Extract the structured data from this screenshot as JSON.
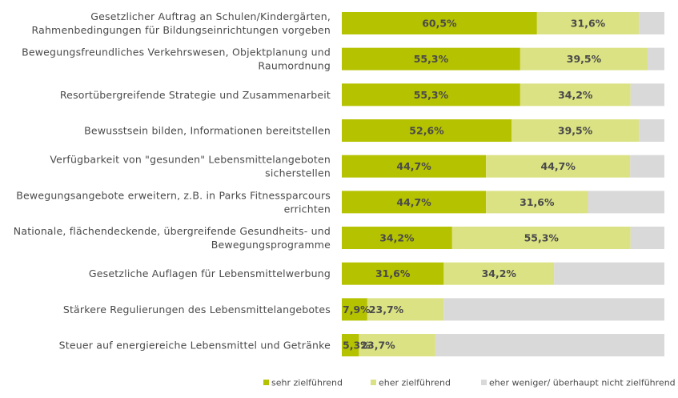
{
  "chart_data": {
    "type": "bar",
    "orientation": "horizontal",
    "stacked": true,
    "xlim": [
      0,
      100
    ],
    "categories": [
      [
        "Gesetzlicher Auftrag an Schulen/Kindergärten,",
        "Rahmenbedingungen für Bildungseinrichtungen vorgeben"
      ],
      [
        "Bewegungsfreundliches Verkehrswesen, Objektplanung und",
        "Raumordnung"
      ],
      [
        "Resortübergreifende Strategie und Zusammenarbeit"
      ],
      [
        "Bewusstsein bilden, Informationen bereitstellen"
      ],
      [
        "Verfügbarkeit von \"gesunden\" Lebensmittelangeboten",
        "sicherstellen"
      ],
      [
        "Bewegungsangebote erweitern, z.B. in Parks Fitnessparcours",
        "errichten"
      ],
      [
        "Nationale, flächendeckende, übergreifende Gesundheits- und",
        "Bewegungsprogramme"
      ],
      [
        "Gesetzliche Auflagen für Lebensmittelwerbung"
      ],
      [
        "Stärkere Regulierungen des Lebensmittelangebotes"
      ],
      [
        "Steuer auf energiereiche Lebensmittel und Getränke"
      ]
    ],
    "series": [
      {
        "name": "sehr zielführend",
        "color": "#b5c200",
        "values": [
          60.5,
          55.3,
          55.3,
          52.6,
          44.7,
          44.7,
          34.2,
          31.6,
          7.9,
          5.3
        ],
        "labels": [
          "60,5%",
          "55,3%",
          "55,3%",
          "52,6%",
          "44,7%",
          "44,7%",
          "34,2%",
          "31,6%",
          "7,9%",
          "5,3%"
        ]
      },
      {
        "name": "eher zielführend",
        "color": "#dbe283",
        "values": [
          31.6,
          39.5,
          34.2,
          39.5,
          44.7,
          31.6,
          55.3,
          34.2,
          23.7,
          23.7
        ],
        "labels": [
          "31,6%",
          "39,5%",
          "34,2%",
          "39,5%",
          "44,7%",
          "31,6%",
          "55,3%",
          "34,2%",
          "23,7%",
          "23,7%"
        ]
      },
      {
        "name": "eher weniger/ überhaupt nicht zielführend",
        "color": "#d9d9d9",
        "values": [
          7.9,
          5.2,
          10.5,
          7.9,
          10.6,
          23.7,
          10.5,
          34.2,
          68.4,
          71.0
        ],
        "labels": []
      }
    ],
    "legend_position": "bottom-right",
    "grid": false
  }
}
